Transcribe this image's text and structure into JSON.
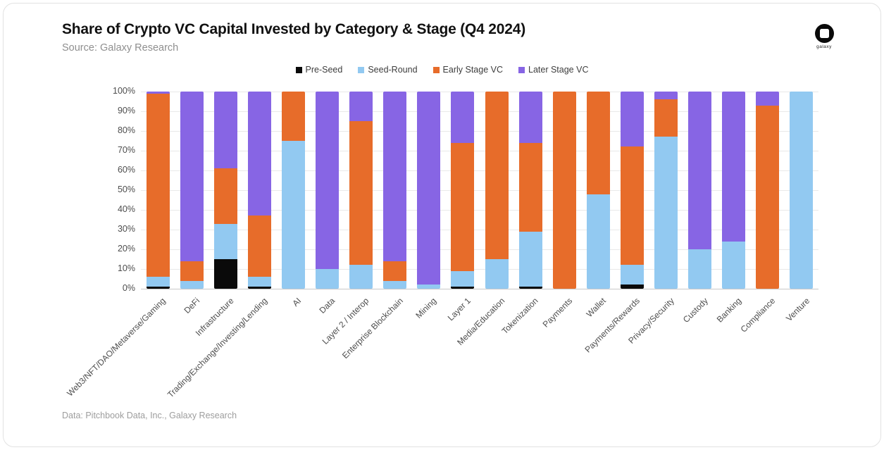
{
  "header": {
    "title": "Share of Crypto VC Capital Invested by Category & Stage (Q4 2024)",
    "source": "Source: Galaxy Research"
  },
  "logo": {
    "label": "galaxy"
  },
  "footer": {
    "credit": "Data: Pitchbook Data, Inc., Galaxy Research"
  },
  "chart_data": {
    "type": "bar",
    "stacked": true,
    "unit": "percent",
    "title": "Share of Crypto VC Capital Invested by Category & Stage (Q4 2024)",
    "xlabel": "",
    "ylabel": "",
    "ylim": [
      0,
      100
    ],
    "ytick_step": 10,
    "yticks": [
      "0%",
      "10%",
      "20%",
      "30%",
      "40%",
      "50%",
      "60%",
      "70%",
      "80%",
      "90%",
      "100%"
    ],
    "grid": true,
    "legend_position": "top",
    "categories": [
      "Web3/NFT/DAO/Metaverse/Gaming",
      "DeFi",
      "Infrastructure",
      "Trading/Exchange/Investing/Lending",
      "AI",
      "Data",
      "Layer 2 / Interop",
      "Enterprise Blockchain",
      "Mining",
      "Layer 1",
      "Media/Education",
      "Tokenization",
      "Payments",
      "Wallet",
      "Payments/Rewards",
      "Privacy/Security",
      "Custody",
      "Banking",
      "Compliance",
      "Venture"
    ],
    "series": [
      {
        "name": "Pre-Seed",
        "color": "#0a0a0a",
        "values": [
          1,
          0,
          15,
          1,
          0,
          0,
          0,
          0,
          0,
          1,
          0,
          1,
          0,
          0,
          2,
          0,
          0,
          0,
          0,
          0
        ]
      },
      {
        "name": "Seed-Round",
        "color": "#92c9f1",
        "values": [
          5,
          4,
          18,
          5,
          75,
          10,
          12,
          4,
          2,
          8,
          15,
          28,
          0,
          48,
          10,
          77,
          20,
          24,
          0,
          100
        ]
      },
      {
        "name": "Early Stage VC",
        "color": "#e76c2a",
        "values": [
          93,
          10,
          28,
          31,
          25,
          0,
          73,
          10,
          0,
          65,
          85,
          45,
          100,
          52,
          60,
          19,
          0,
          0,
          93,
          0
        ]
      },
      {
        "name": "Later Stage VC",
        "color": "#8765e4",
        "values": [
          1,
          86,
          39,
          63,
          0,
          90,
          15,
          86,
          98,
          26,
          0,
          26,
          0,
          0,
          28,
          4,
          80,
          76,
          7,
          0
        ]
      }
    ]
  }
}
